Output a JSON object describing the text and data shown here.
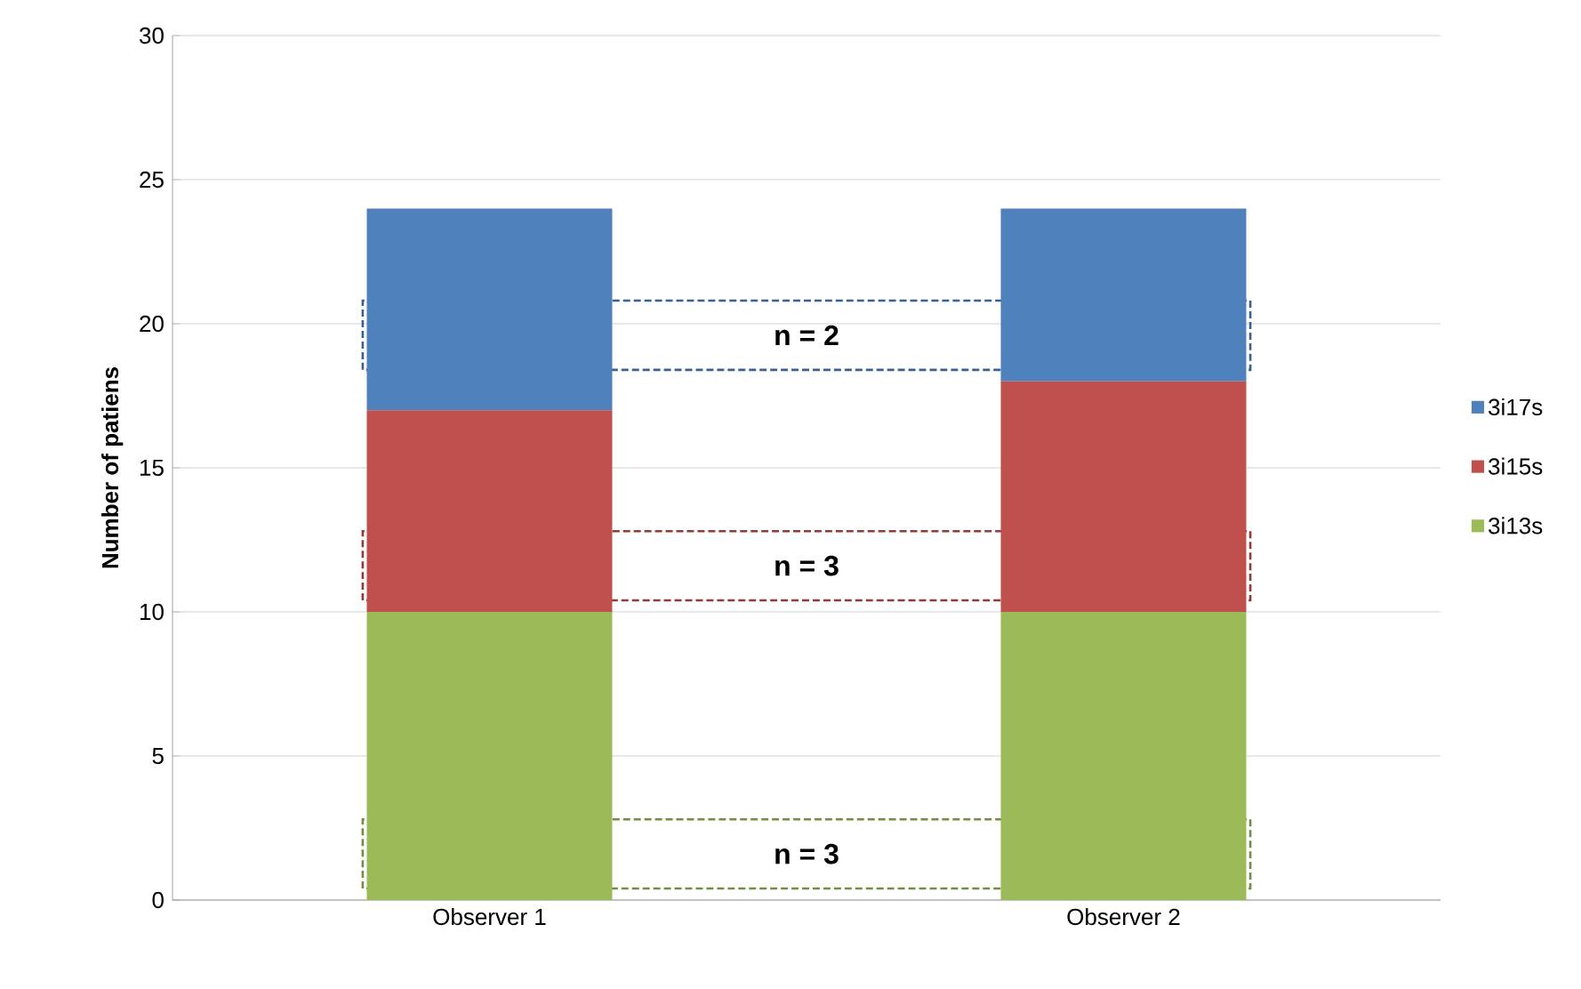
{
  "chart_data": {
    "type": "bar",
    "stacked": true,
    "ylabel": "Number of patiens",
    "categories": [
      "Observer 1",
      "Observer 2"
    ],
    "series": [
      {
        "name": "3i13s",
        "color": "#9bbb59",
        "values": [
          10,
          10
        ]
      },
      {
        "name": "3i15s",
        "color": "#c0504d",
        "values": [
          7,
          8
        ]
      },
      {
        "name": "3i17s",
        "color": "#4f81bd",
        "values": [
          7,
          6
        ]
      }
    ],
    "ylim": [
      0,
      30
    ],
    "yticks": [
      0,
      5,
      10,
      15,
      20,
      25,
      30
    ],
    "grid": "y",
    "legend": "right",
    "annotations": [
      "n = 2",
      "n = 3",
      "n = 3"
    ]
  }
}
